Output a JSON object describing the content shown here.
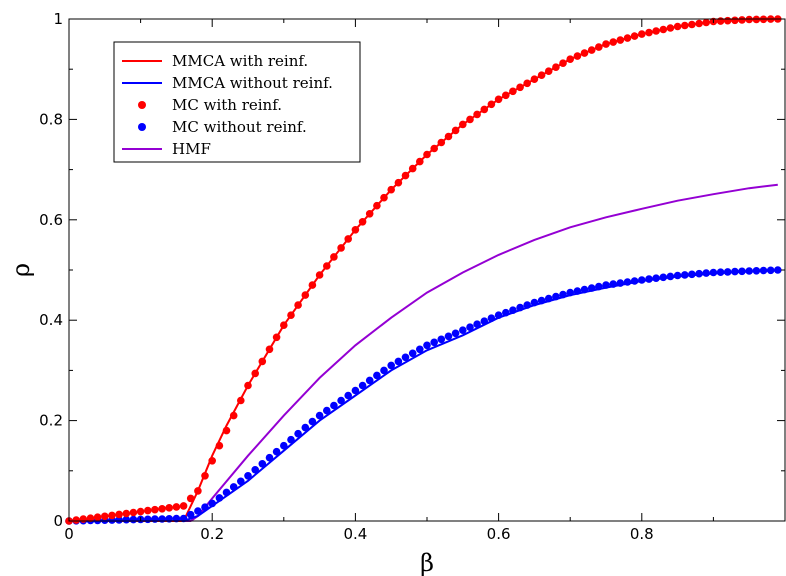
{
  "chart_data": {
    "type": "line",
    "title": "",
    "xlabel": "β",
    "ylabel": "ρ",
    "xlim": [
      0,
      1
    ],
    "ylim": [
      0,
      1
    ],
    "x_ticks": [
      "0",
      "0.2",
      "0.4",
      "0.6",
      "0.8"
    ],
    "x_tick_values": [
      0,
      0.2,
      0.4,
      0.6,
      0.8
    ],
    "y_ticks": [
      "0",
      "0.2",
      "0.4",
      "0.6",
      "0.8",
      "1"
    ],
    "y_tick_values": [
      0,
      0.2,
      0.4,
      0.6,
      0.8,
      1
    ],
    "grid": false,
    "legend_position": "top-left",
    "series": [
      {
        "name": "MMCA with reinf.",
        "kind": "line",
        "color": "#ff0000",
        "x": [
          0,
          0.16,
          0.18,
          0.2,
          0.22,
          0.25,
          0.3,
          0.35,
          0.4,
          0.45,
          0.5,
          0.55,
          0.6,
          0.65,
          0.7,
          0.75,
          0.8,
          0.85,
          0.9,
          0.95,
          0.99
        ],
        "y": [
          0,
          0,
          0.06,
          0.13,
          0.19,
          0.27,
          0.39,
          0.49,
          0.58,
          0.66,
          0.73,
          0.79,
          0.84,
          0.88,
          0.92,
          0.95,
          0.97,
          0.985,
          0.995,
          0.999,
          1.0
        ]
      },
      {
        "name": "MMCA without reinf.",
        "kind": "line",
        "color": "#0000ff",
        "x": [
          0,
          0.16,
          0.18,
          0.2,
          0.25,
          0.3,
          0.35,
          0.4,
          0.45,
          0.5,
          0.55,
          0.6,
          0.65,
          0.7,
          0.75,
          0.8,
          0.85,
          0.9,
          0.95,
          0.99
        ],
        "y": [
          0,
          0,
          0.01,
          0.03,
          0.08,
          0.14,
          0.2,
          0.25,
          0.3,
          0.34,
          0.37,
          0.405,
          0.43,
          0.45,
          0.465,
          0.478,
          0.487,
          0.493,
          0.497,
          0.499
        ]
      },
      {
        "name": "MC with reinf.",
        "kind": "scatter",
        "color": "#ff0000",
        "x": [
          0,
          0.16,
          0.18,
          0.2,
          0.22,
          0.25,
          0.3,
          0.35,
          0.4,
          0.45,
          0.5,
          0.55,
          0.6,
          0.65,
          0.7,
          0.75,
          0.8,
          0.85,
          0.9,
          0.95,
          0.99
        ],
        "y": [
          0,
          0.03,
          0.06,
          0.12,
          0.18,
          0.27,
          0.39,
          0.49,
          0.58,
          0.66,
          0.73,
          0.79,
          0.84,
          0.88,
          0.92,
          0.95,
          0.97,
          0.985,
          0.995,
          0.999,
          1.0
        ]
      },
      {
        "name": "MC without reinf.",
        "kind": "scatter",
        "color": "#0000ff",
        "x": [
          0,
          0.16,
          0.18,
          0.2,
          0.25,
          0.3,
          0.35,
          0.4,
          0.45,
          0.5,
          0.55,
          0.6,
          0.65,
          0.7,
          0.75,
          0.8,
          0.85,
          0.9,
          0.95,
          0.99
        ],
        "y": [
          0,
          0.005,
          0.02,
          0.035,
          0.09,
          0.15,
          0.21,
          0.26,
          0.31,
          0.35,
          0.38,
          0.41,
          0.435,
          0.455,
          0.47,
          0.48,
          0.489,
          0.495,
          0.498,
          0.5
        ]
      },
      {
        "name": "HMF",
        "kind": "line",
        "color": "#9400d3",
        "x": [
          0,
          0.17,
          0.18,
          0.2,
          0.25,
          0.3,
          0.35,
          0.4,
          0.45,
          0.5,
          0.55,
          0.6,
          0.65,
          0.7,
          0.75,
          0.8,
          0.85,
          0.9,
          0.95,
          0.99
        ],
        "y": [
          0,
          0,
          0.01,
          0.045,
          0.13,
          0.21,
          0.285,
          0.35,
          0.405,
          0.455,
          0.495,
          0.53,
          0.56,
          0.585,
          0.605,
          0.622,
          0.638,
          0.651,
          0.663,
          0.67
        ]
      }
    ]
  }
}
